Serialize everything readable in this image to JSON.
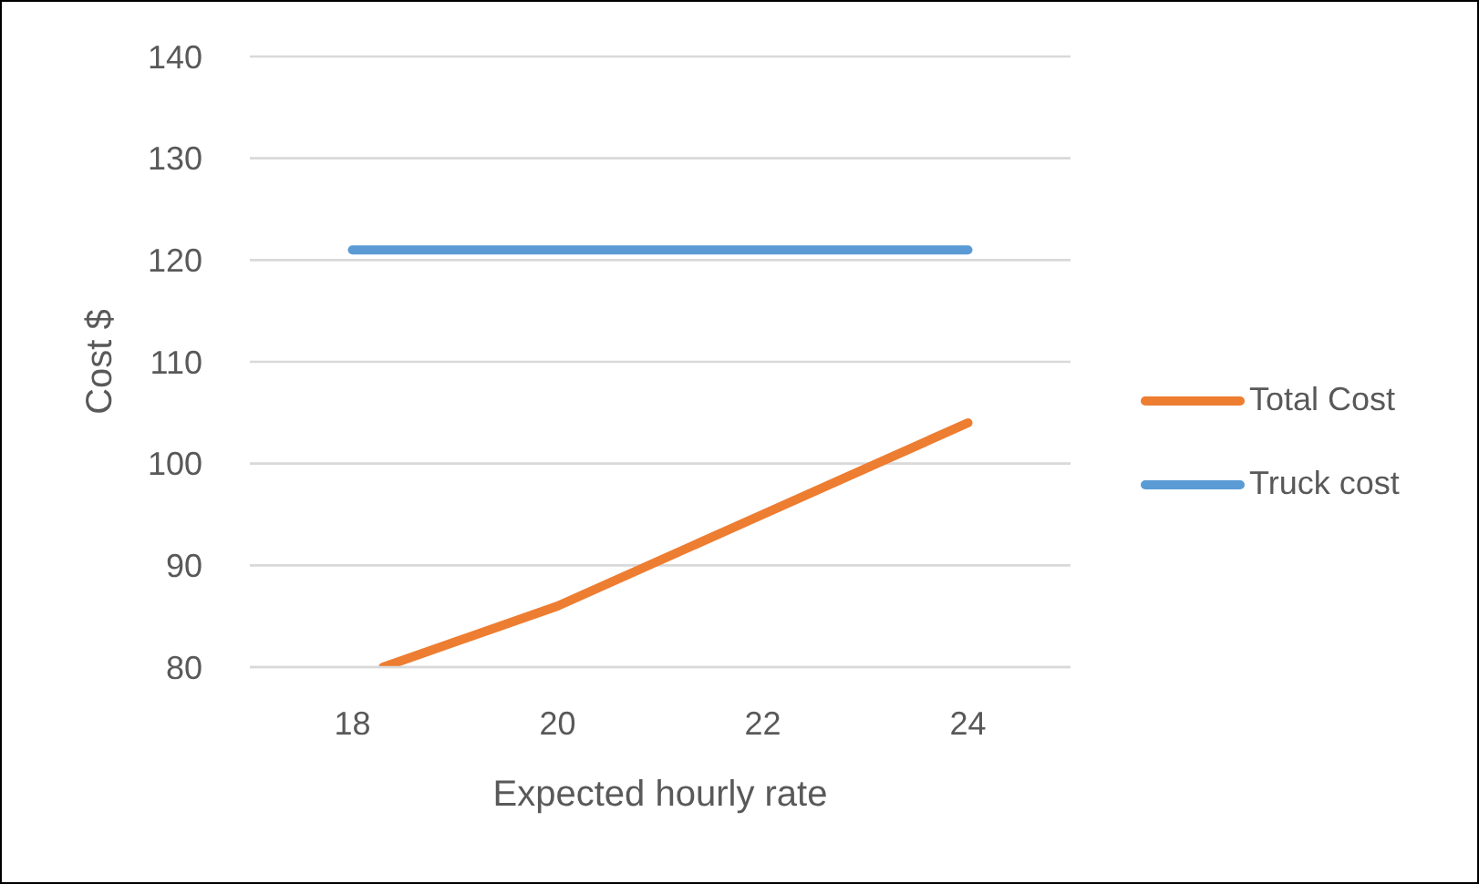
{
  "chart_data": {
    "type": "line",
    "xlabel": "Expected hourly rate",
    "ylabel": "Cost $",
    "xlim": [
      17,
      25
    ],
    "xticks": [
      18,
      20,
      22,
      24
    ],
    "ylim": [
      80,
      140
    ],
    "yticks": [
      80,
      90,
      100,
      110,
      120,
      130,
      140
    ],
    "grid": "y",
    "legend": "right",
    "marker": "none",
    "line_style": "solid",
    "series": [
      {
        "name": "Total Cost",
        "color": "#ed7d31",
        "x": [
          18.3,
          20,
          22,
          24
        ],
        "values": [
          80,
          86,
          95,
          104
        ]
      },
      {
        "name": "Truck cost",
        "color": "#5b9bd5",
        "x": [
          18,
          20,
          22,
          24
        ],
        "values": [
          121,
          121,
          121,
          121
        ]
      }
    ]
  }
}
